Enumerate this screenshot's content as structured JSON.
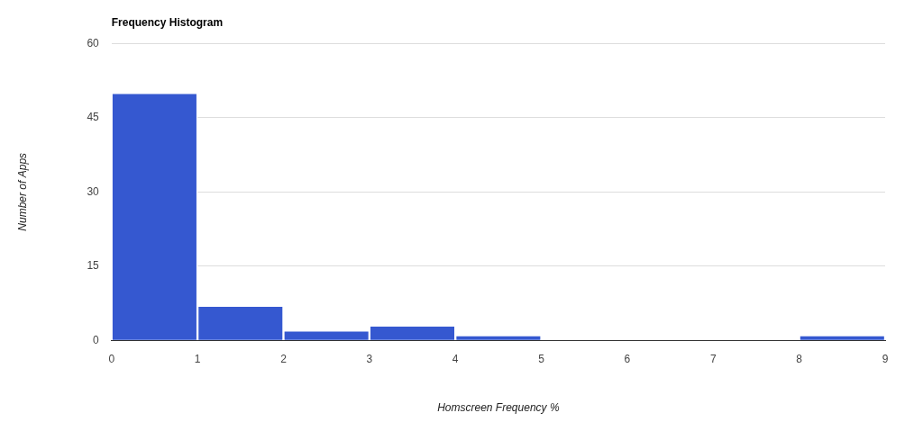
{
  "chart_data": {
    "type": "histogram",
    "title": "Frequency Histogram",
    "x_label": "Homscreen Frequency %",
    "y_label": "Number of Apps",
    "bins": [
      0,
      1,
      2,
      3,
      4,
      5,
      6,
      7,
      8,
      9
    ],
    "counts": [
      50,
      7,
      2,
      3,
      1,
      0,
      0,
      0,
      1
    ],
    "color": "#3558d0",
    "xlim": [
      0,
      9
    ],
    "xticks": [
      0,
      1,
      2,
      3,
      4,
      5,
      6,
      7,
      8,
      9
    ],
    "ylim": [
      0,
      60
    ],
    "yticks": [
      0,
      15,
      30,
      45,
      60
    ],
    "grid": true
  }
}
